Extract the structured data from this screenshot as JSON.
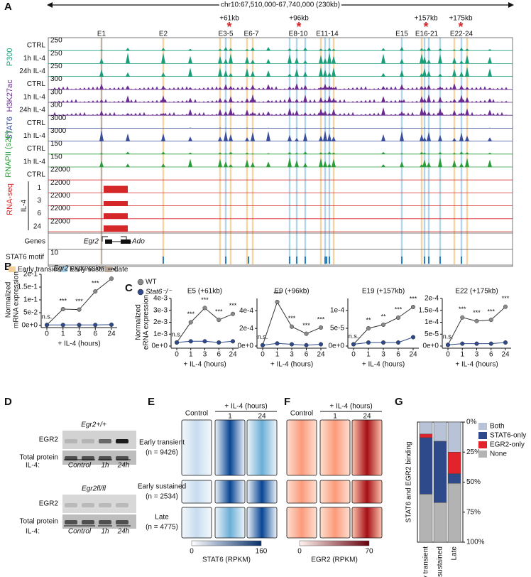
{
  "figure": {
    "panel_letters": [
      "A",
      "B",
      "C",
      "D",
      "E",
      "F",
      "G"
    ],
    "genome": {
      "region": "chr10:67,510,000-67,740,000 (230kb)",
      "distances": [
        "+61kb",
        "+96kb",
        "+157kb",
        "+175kb"
      ],
      "star": "*",
      "enhancers": [
        "E1",
        "E2",
        "E3-5",
        "E6-7",
        "E8-10",
        "E11-14",
        "E15",
        "E16-21",
        "E22-24"
      ],
      "groups": [
        {
          "text": "P300",
          "color": "#1a9e7a"
        },
        {
          "text": "H3K27ac",
          "color": "#6a2c91"
        },
        {
          "text": "STAT6",
          "color": "#3a4e9c"
        },
        {
          "text": "RNAPII (s2P)",
          "color": "#2a9d3a"
        },
        {
          "text": "RNA-seq",
          "color": "#d62728"
        }
      ],
      "tracks": [
        {
          "label": "CTRL",
          "scale": 250
        },
        {
          "label": "1h IL-4",
          "scale": 250
        },
        {
          "label": "24h IL-4",
          "scale": 250
        },
        {
          "label": "CTRL",
          "scale": 300
        },
        {
          "label": "1h IL-4",
          "scale": 300
        },
        {
          "label": "24h IL-4",
          "scale": 300
        },
        {
          "label": "CTRL",
          "scale": 3000
        },
        {
          "label": "1h IL-4",
          "scale": 3000
        },
        {
          "label": "CTRL",
          "scale": 150
        },
        {
          "label": "1h IL-4",
          "scale": 150
        },
        {
          "label": "CTRL",
          "scale": 22000
        },
        {
          "label": "1",
          "scale": 22000
        },
        {
          "label": "3",
          "scale": 22000
        },
        {
          "label": "6",
          "scale": 22000
        },
        {
          "label": "24",
          "scale": 22000
        }
      ],
      "il4_label": "IL-4",
      "genes_label": "Genes",
      "genes": [
        "Egr2",
        "Ado"
      ],
      "motif_label": "STAT6 motif",
      "motif_scale": 10,
      "legend": [
        {
          "text": "Early transient",
          "color": "#f5cf9a"
        },
        {
          "text": "Early sustained",
          "color": "#a8d0e8"
        },
        {
          "text": "Late",
          "color": "#b8a89a"
        }
      ]
    },
    "blot": {
      "genotypes": [
        "Egr2+/+",
        "Egr2fl/fl"
      ],
      "rows": [
        "EGR2",
        "Total protein"
      ],
      "il4_label": "IL-4:",
      "lanes": [
        "Control",
        "1h",
        "24h"
      ]
    },
    "heatmap_E": {
      "header": "+ IL-4 (hours)",
      "columns": [
        "Control",
        "1",
        "24"
      ],
      "groups": [
        [
          "Early transient",
          "(n = 9426)"
        ],
        [
          "Early sustained",
          "(n = 2534)"
        ],
        [
          "Late",
          "(n = 4775)"
        ]
      ],
      "scale_min": 0,
      "scale_max": 160,
      "scale_label": "STAT6 (RPKM)"
    },
    "heatmap_F": {
      "header": "+ IL-4 (hours)",
      "columns": [
        "Control",
        "1",
        "24"
      ],
      "scale_min": 0,
      "scale_max": 70,
      "scale_label": "EGR2 (RPKM)"
    }
  },
  "chart_data": [
    {
      "type": "line",
      "title": "Egr2 expression",
      "ylabel": [
        "Normalized",
        "mRNA expression"
      ],
      "xlabel": "+ IL-4 (hours)",
      "categories": [
        0,
        1,
        3,
        6,
        24
      ],
      "series": [
        {
          "color": "#8a8a8a",
          "values": [
            0.002,
            0.064,
            0.062,
            0.133,
            0.183
          ]
        },
        {
          "color": "#2e4a8b",
          "values": [
            0.002,
            0.002,
            0.002,
            0.002,
            0.003
          ]
        }
      ],
      "significance": [
        "n.s.",
        "***",
        "***",
        "***",
        "***"
      ],
      "ylim": [
        0,
        0.2
      ],
      "yticks": [
        {
          "value": 0,
          "label": "0e+0"
        },
        {
          "value": 0.05,
          "label": "5e-2"
        },
        {
          "value": 0.1,
          "label": "1e-1"
        },
        {
          "value": 0.15,
          "label": "1.5e-1"
        },
        {
          "value": 0.2,
          "label": "2e-1"
        }
      ]
    },
    {
      "type": "line",
      "title": "E5 (+61kb)",
      "ylabel": [
        "Normalized",
        "eRNA expression"
      ],
      "xlabel": "+ IL-4 (hours)",
      "categories": [
        0,
        1,
        3,
        6,
        24
      ],
      "legend": "upper left",
      "series": [
        {
          "name": "WT",
          "color": "#8a8a8a",
          "values": [
            0.0003,
            0.002,
            0.0032,
            0.0022,
            0.0027
          ]
        },
        {
          "name": "Stat6⁻/⁻",
          "color": "#2e4a8b",
          "values": [
            0.0003,
            0.0004,
            0.0004,
            0.0003,
            0.0004
          ]
        }
      ],
      "significance": [
        "n.s.",
        "***",
        "***",
        "***",
        "***"
      ],
      "ylim": [
        0,
        0.004
      ],
      "yticks": [
        {
          "value": 0,
          "label": "0e+0"
        },
        {
          "value": 0.001,
          "label": "1e-3"
        },
        {
          "value": 0.002,
          "label": "2e-3"
        },
        {
          "value": 0.003,
          "label": "3e-3"
        },
        {
          "value": 0.004,
          "label": "4e-3"
        }
      ]
    },
    {
      "type": "line",
      "title": "E9 (+96kb)",
      "xlabel": "+ IL-4 (hours)",
      "categories": [
        0,
        1,
        3,
        6,
        24
      ],
      "series": [
        {
          "color": "#8a8a8a",
          "values": [
            1e-05,
            0.0005,
            0.00022,
            0.00014,
            0.00021
          ]
        },
        {
          "color": "#2e4a8b",
          "values": [
            1e-05,
            3e-05,
            2e-05,
            1e-05,
            2e-05
          ]
        }
      ],
      "significance": [
        "n.s.",
        "***",
        "***",
        "***",
        "***"
      ],
      "ylim": [
        0,
        0.00054
      ],
      "yticks": [
        {
          "value": 0,
          "label": "0e+0"
        },
        {
          "value": 0.0002,
          "label": "2e-4"
        },
        {
          "value": 0.0004,
          "label": "4e-4"
        }
      ]
    },
    {
      "type": "line",
      "title": "E19 (+157kb)",
      "xlabel": "+ IL-4 (hours)",
      "categories": [
        0,
        1,
        3,
        6,
        24
      ],
      "series": [
        {
          "color": "#8a8a8a",
          "values": [
            5e-06,
            5e-05,
            6e-05,
            8e-05,
            0.00011
          ]
        },
        {
          "color": "#2e4a8b",
          "values": [
            5e-06,
            1e-05,
            1e-05,
            1e-05,
            2.5e-05
          ]
        }
      ],
      "significance": [
        "n.s.",
        "**",
        "**",
        "***",
        "***"
      ],
      "ylim": [
        0,
        0.000134
      ],
      "yticks": [
        {
          "value": 0,
          "label": "0e+0"
        },
        {
          "value": 5e-05,
          "label": "5e-5"
        },
        {
          "value": 0.0001,
          "label": "1e-4"
        }
      ]
    },
    {
      "type": "line",
      "title": "E22 (+175kb)",
      "xlabel": "+ IL-4 (hours)",
      "categories": [
        0,
        1,
        3,
        6,
        24
      ],
      "series": [
        {
          "color": "#8a8a8a",
          "values": [
            5e-06,
            0.00012,
            0.000105,
            0.00011,
            0.000165
          ]
        },
        {
          "color": "#2e4a8b",
          "values": [
            5e-06,
            1e-05,
            1e-05,
            1e-05,
            1.5e-05
          ]
        }
      ],
      "significance": [
        "n.s.",
        "***",
        "***",
        "***",
        "***"
      ],
      "ylim": [
        0,
        0.0002
      ],
      "yticks": [
        {
          "value": 0,
          "label": "0e+0"
        },
        {
          "value": 5e-05,
          "label": "5e-5"
        },
        {
          "value": 0.0001,
          "label": "1e-4"
        },
        {
          "value": 0.00015,
          "label": "1.5e-4"
        },
        {
          "value": 0.0002,
          "label": "2e-4"
        }
      ]
    },
    {
      "type": "stacked_bar",
      "ylabel": "STAT6 and EGR2 binding",
      "y_inverted": true,
      "categories": [
        "Early transient",
        "Early sustained",
        "Late"
      ],
      "series": [
        {
          "name": "Both",
          "color": "#b8c3d8",
          "values": [
            10,
            16,
            25
          ]
        },
        {
          "name": "EGR2-only",
          "color": "#e3232b",
          "values": [
            3,
            0,
            18
          ]
        },
        {
          "name": "STAT6-only",
          "color": "#2e4a8b",
          "values": [
            47,
            51,
            8
          ]
        },
        {
          "name": "None",
          "color": "#b3b3b3",
          "values": [
            40,
            33,
            49
          ]
        }
      ],
      "legend_order": [
        0,
        2,
        1,
        3
      ],
      "ylim": [
        0,
        100
      ],
      "yticks": [
        {
          "value": 0,
          "label": "0%"
        },
        {
          "value": 25,
          "label": "25%"
        },
        {
          "value": 50,
          "label": "50%"
        },
        {
          "value": 75,
          "label": "75%"
        },
        {
          "value": 100,
          "label": "100%"
        }
      ]
    }
  ]
}
